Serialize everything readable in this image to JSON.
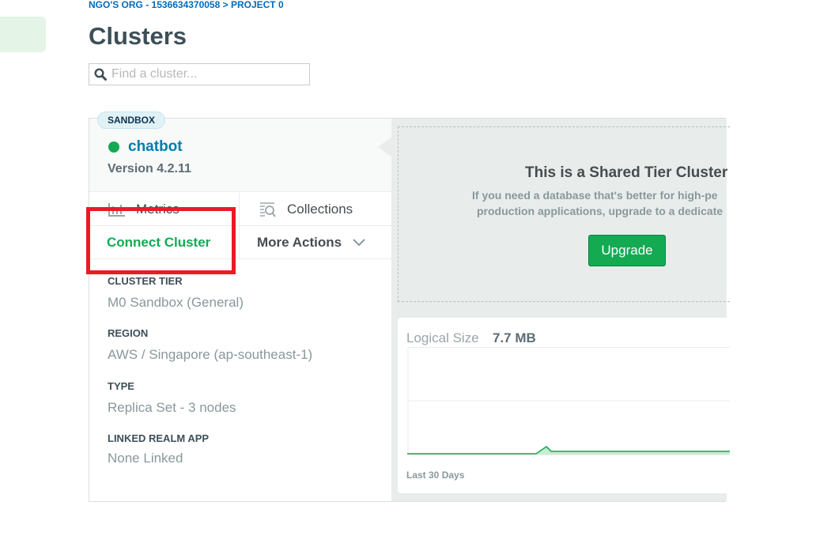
{
  "breadcrumb": "NGO'S ORG - 1536634370058 > PROJECT 0",
  "page_title": "Clusters",
  "search": {
    "placeholder": "Find a cluster...",
    "value": ""
  },
  "cluster": {
    "tier_badge": "SANDBOX",
    "name": "chatbot",
    "status_color": "#13aa52",
    "version": "Version 4.2.11",
    "actions": {
      "metrics": "Metrics",
      "collections": "Collections",
      "connect": "Connect Cluster",
      "more": "More Actions"
    },
    "details": [
      {
        "label": "CLUSTER TIER",
        "value": "M0 Sandbox (General)"
      },
      {
        "label": "REGION",
        "value": "AWS / Singapore (ap-southeast-1)"
      },
      {
        "label": "TYPE",
        "value": "Replica Set - 3 nodes"
      },
      {
        "label": "LINKED REALM APP",
        "value": "None Linked"
      }
    ]
  },
  "shared_tier": {
    "title": "This is a Shared Tier Cluster",
    "description_line1": "If you need a database that's better for high-pe",
    "description_line2": "production applications, upgrade to a dedicate",
    "upgrade_label": "Upgrade"
  },
  "logical_size": {
    "label": "Logical Size",
    "value": "7.7 MB",
    "period": "Last 30 Days"
  },
  "highlight_color": "#e81c25"
}
